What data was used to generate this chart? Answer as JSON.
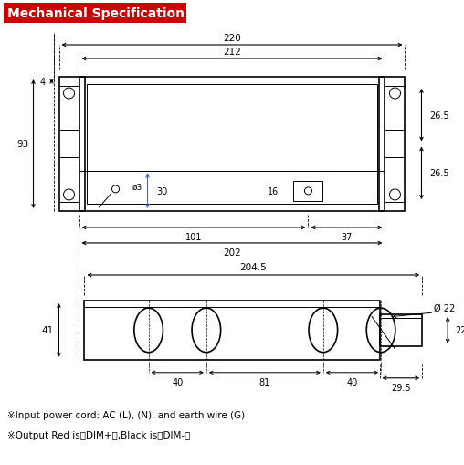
{
  "title": "Mechanical Specification",
  "title_bg": "#cc0000",
  "title_color": "#ffffff",
  "line_color": "#000000",
  "bg_color": "#ffffff",
  "figw": 5.08,
  "figh": 5.1,
  "dpi": 100,
  "note1": "※Input power cord: AC (L), (N), and earth wire (G)",
  "note2": "※Output Red is（DIM+）,Black is（DIM-）"
}
